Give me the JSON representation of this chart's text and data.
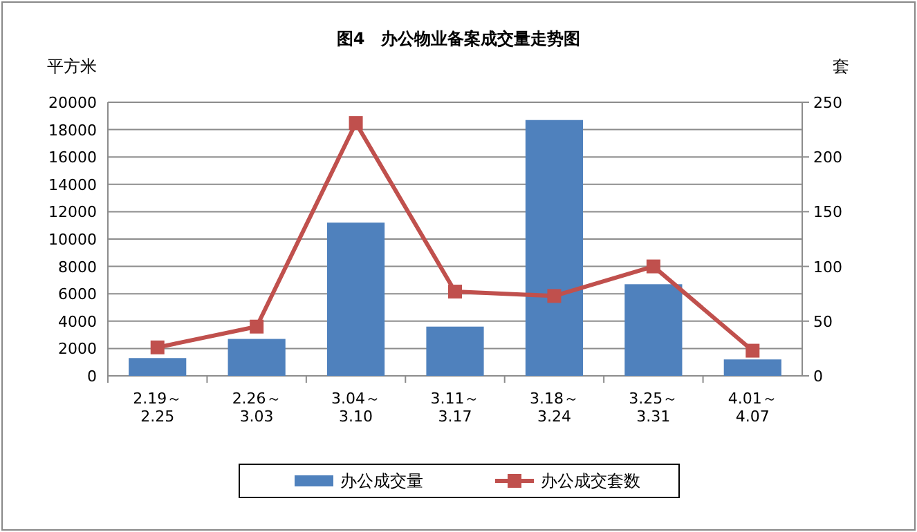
{
  "chart_data": {
    "type": "bar",
    "title": "图4　办公物业备案成交量走势图",
    "ylabel": "平方米",
    "y2label": "套",
    "categories": [
      "2.19～\n2.25",
      "2.26～\n3.03",
      "3.04～\n3.10",
      "3.11～\n3.17",
      "3.18～\n3.24",
      "3.25～\n3.31",
      "4.01～\n4.07"
    ],
    "series": [
      {
        "name": "办公成交量",
        "color": "#4f81bd",
        "values": [
          1300,
          2700,
          11200,
          3600,
          18700,
          6700,
          1200
        ]
      },
      {
        "name": "办公成交套数",
        "type": "line",
        "axis": "y2",
        "color": "#c0504d",
        "marker": "square",
        "line_style": "solid",
        "values": [
          26,
          45,
          231,
          77,
          73,
          100,
          23
        ]
      }
    ],
    "ylim": [
      0,
      20000
    ],
    "yticks": [
      0,
      2000,
      4000,
      6000,
      8000,
      10000,
      12000,
      14000,
      16000,
      18000,
      20000
    ],
    "y2lim": [
      0,
      250
    ],
    "y2ticks": [
      0,
      50,
      100,
      150,
      200,
      250
    ],
    "grid": "y",
    "legend": "bottom"
  }
}
